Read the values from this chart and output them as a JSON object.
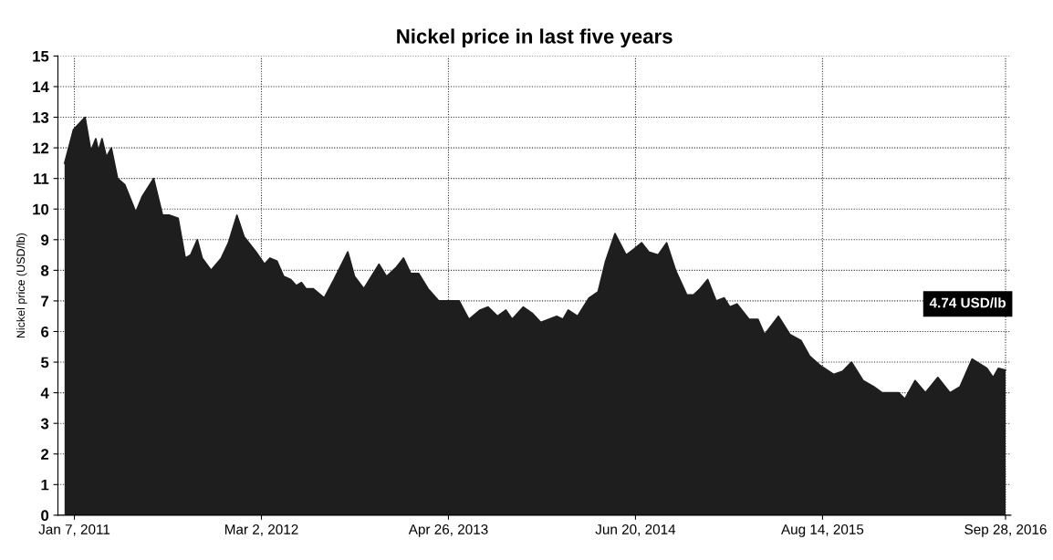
{
  "chart_data": {
    "type": "area",
    "title": "Nickel price in last five years",
    "ylabel": "Nickel price (USD/lb)",
    "x": [
      "2010-12-16",
      "2011-01-05",
      "2011-01-31",
      "2011-02-13",
      "2011-02-24",
      "2011-03-02",
      "2011-03-10",
      "2011-03-20",
      "2011-03-31",
      "2011-04-14",
      "2011-04-30",
      "2011-05-25",
      "2011-06-08",
      "2011-07-04",
      "2011-07-24",
      "2011-08-09",
      "2011-08-28",
      "2011-09-13",
      "2011-09-25",
      "2011-10-10",
      "2011-10-21",
      "2011-11-10",
      "2011-12-03",
      "2011-12-19",
      "2012-01-07",
      "2012-01-23",
      "2012-02-19",
      "2012-03-09",
      "2012-03-21",
      "2012-04-06",
      "2012-04-21",
      "2012-05-07",
      "2012-05-19",
      "2012-05-31",
      "2012-06-10",
      "2012-06-26",
      "2012-07-21",
      "2012-08-12",
      "2012-09-12",
      "2012-09-27",
      "2012-10-18",
      "2012-11-21",
      "2012-12-08",
      "2012-12-30",
      "2013-01-15",
      "2013-01-31",
      "2013-02-18",
      "2013-03-11",
      "2013-04-04",
      "2013-04-26",
      "2013-05-20",
      "2013-06-11",
      "2013-07-06",
      "2013-07-24",
      "2013-08-14",
      "2013-09-02",
      "2013-09-16",
      "2013-10-11",
      "2013-10-31",
      "2013-11-19",
      "2013-12-25",
      "2014-01-08",
      "2014-01-20",
      "2014-02-10",
      "2014-03-08",
      "2014-03-28",
      "2014-04-14",
      "2014-05-05",
      "2014-05-30",
      "2014-06-17",
      "2014-07-04",
      "2014-07-20",
      "2014-08-10",
      "2014-08-29",
      "2014-09-18",
      "2014-10-13",
      "2014-10-29",
      "2014-11-12",
      "2014-11-29",
      "2014-12-18",
      "2015-01-05",
      "2015-01-18",
      "2015-02-03",
      "2015-03-02",
      "2015-03-22",
      "2015-04-06",
      "2015-05-07",
      "2015-06-02",
      "2015-06-27",
      "2015-07-16",
      "2015-08-08",
      "2015-09-08",
      "2015-09-28",
      "2015-10-18",
      "2015-11-13",
      "2015-12-07",
      "2015-12-26",
      "2016-02-01",
      "2016-02-15",
      "2016-03-09",
      "2016-04-01",
      "2016-04-29",
      "2016-05-26",
      "2016-06-18",
      "2016-07-15",
      "2016-08-17",
      "2016-08-31",
      "2016-09-12",
      "2016-09-28"
    ],
    "series": [
      {
        "color": "#1e1e1e",
        "values": [
          11.5,
          12.6,
          13.0,
          11.9,
          12.3,
          11.9,
          12.3,
          11.7,
          12.0,
          11.0,
          10.8,
          9.9,
          10.4,
          11.0,
          9.8,
          9.8,
          9.7,
          8.4,
          8.5,
          9.0,
          8.4,
          8.0,
          8.4,
          8.9,
          9.8,
          9.1,
          8.6,
          8.2,
          8.4,
          8.3,
          7.8,
          7.7,
          7.5,
          7.6,
          7.4,
          7.4,
          7.1,
          7.7,
          8.6,
          7.8,
          7.4,
          8.2,
          7.8,
          8.1,
          8.4,
          7.9,
          7.9,
          7.4,
          7.0,
          7.0,
          7.0,
          6.4,
          6.7,
          6.8,
          6.5,
          6.7,
          6.4,
          6.8,
          6.6,
          6.3,
          6.5,
          6.4,
          6.7,
          6.5,
          7.1,
          7.3,
          8.3,
          9.2,
          8.5,
          8.7,
          8.9,
          8.6,
          8.5,
          8.9,
          8.0,
          7.2,
          7.2,
          7.4,
          7.7,
          7.0,
          7.1,
          6.8,
          6.9,
          6.4,
          6.4,
          5.9,
          6.5,
          5.9,
          5.7,
          5.2,
          4.9,
          4.6,
          4.7,
          5.0,
          4.4,
          4.2,
          4.0,
          4.0,
          3.8,
          4.4,
          4.0,
          4.5,
          4.0,
          4.2,
          5.1,
          4.8,
          4.5,
          4.8,
          4.74
        ]
      }
    ],
    "xlim": [
      "2010-12-01",
      "2016-10-10"
    ],
    "xticks": [
      {
        "value": "2011-01-07",
        "label": "Jan 7, 2011"
      },
      {
        "value": "2012-03-02",
        "label": "Mar 2, 2012"
      },
      {
        "value": "2013-04-26",
        "label": "Apr 26, 2013"
      },
      {
        "value": "2014-06-20",
        "label": "Jun 20, 2014"
      },
      {
        "value": "2015-08-14",
        "label": "Aug 14, 2015"
      },
      {
        "value": "2016-09-28",
        "label": "Sep 28, 2016"
      }
    ],
    "ylim": [
      0,
      15
    ],
    "yticks": [
      0,
      1,
      2,
      3,
      4,
      5,
      6,
      7,
      8,
      9,
      10,
      11,
      12,
      13,
      14,
      15
    ],
    "grid": true,
    "annotations": [
      "4.74 USD/lb"
    ]
  }
}
